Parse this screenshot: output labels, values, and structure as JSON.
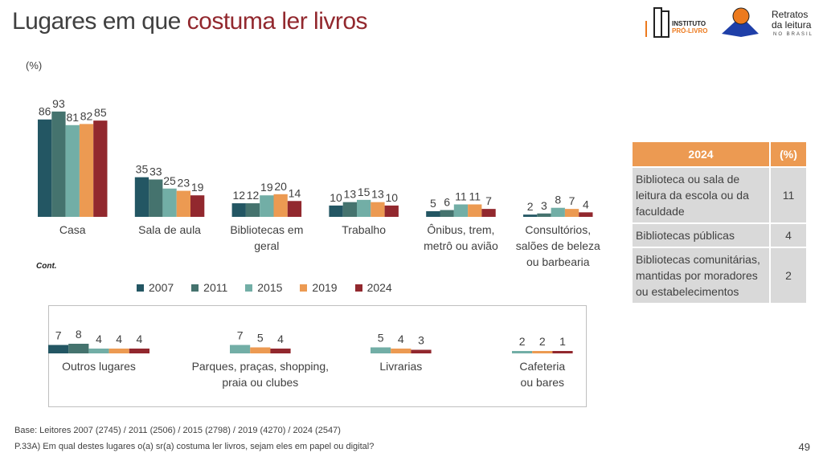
{
  "header": {
    "title_plain": "Lugares em que ",
    "title_highlight": "costuma ler livros",
    "unit": "(%)"
  },
  "logos": {
    "ipl": "INSTITUTO PRÓ-LIVRO",
    "retratos": "Retratos da leitura NO BRASIL"
  },
  "cont_label": "Cont.",
  "colors": {
    "2007": "#235663",
    "2011": "#45736E",
    "2015": "#72AEA6",
    "2019": "#EC9A52",
    "2024": "#92282E"
  },
  "chart_data": [
    {
      "type": "bar",
      "title": "Lugares em que costuma ler livros",
      "ylabel": "(%)",
      "ylim": [
        0,
        100
      ],
      "series_names": [
        "2007",
        "2011",
        "2015",
        "2019",
        "2024"
      ],
      "categories": [
        {
          "label": [
            "Casa"
          ],
          "values": [
            86,
            93,
            81,
            82,
            85
          ]
        },
        {
          "label": [
            "Sala de aula"
          ],
          "values": [
            35,
            33,
            25,
            23,
            19
          ]
        },
        {
          "label": [
            "Bibliotecas em",
            "geral"
          ],
          "values": [
            12,
            12,
            19,
            20,
            14
          ]
        },
        {
          "label": [
            "Trabalho"
          ],
          "values": [
            10,
            13,
            15,
            13,
            10
          ]
        },
        {
          "label": [
            "Ônibus, trem,",
            "metrô ou avião"
          ],
          "values": [
            5,
            6,
            11,
            11,
            7
          ]
        },
        {
          "label": [
            "Consultórios,",
            "salões de beleza",
            "ou barbearia"
          ],
          "values": [
            2,
            3,
            8,
            7,
            4
          ]
        }
      ]
    },
    {
      "type": "bar",
      "title": "Cont.",
      "ylim": [
        0,
        100
      ],
      "categories": [
        {
          "label": [
            "Outros lugares"
          ],
          "series": [
            "2007",
            "2011",
            "2015",
            "2019",
            "2024"
          ],
          "values": [
            7,
            8,
            4,
            4,
            4
          ]
        },
        {
          "label": [
            "Parques, praças, shopping,",
            "praia ou clubes"
          ],
          "series": [
            "2015",
            "2019",
            "2024"
          ],
          "values": [
            7,
            5,
            4
          ]
        },
        {
          "label": [
            "Livrarias"
          ],
          "series": [
            "2015",
            "2019",
            "2024"
          ],
          "values": [
            5,
            4,
            3
          ]
        },
        {
          "label": [
            "Cafeteria",
            "ou bares"
          ],
          "series": [
            "2015",
            "2019",
            "2024"
          ],
          "values": [
            2,
            2,
            1
          ]
        }
      ]
    }
  ],
  "legend": [
    "2007",
    "2011",
    "2015",
    "2019",
    "2024"
  ],
  "table": {
    "headers": [
      "2024",
      "(%)"
    ],
    "rows": [
      [
        "Biblioteca ou sala de leitura da escola ou da faculdade",
        "11"
      ],
      [
        "Bibliotecas públicas",
        "4"
      ],
      [
        "Bibliotecas comunitárias, mantidas por moradores ou estabelecimentos",
        "2"
      ]
    ]
  },
  "footer": {
    "base": "Base: Leitores 2007 (2745) / 2011 (2506) / 2015 (2798) / 2019 (4270) / 2024 (2547)",
    "question": "P.33A) Em qual destes lugares o(a) sr(a) costuma ler livros, sejam eles em papel ou digital?",
    "page": "49"
  }
}
